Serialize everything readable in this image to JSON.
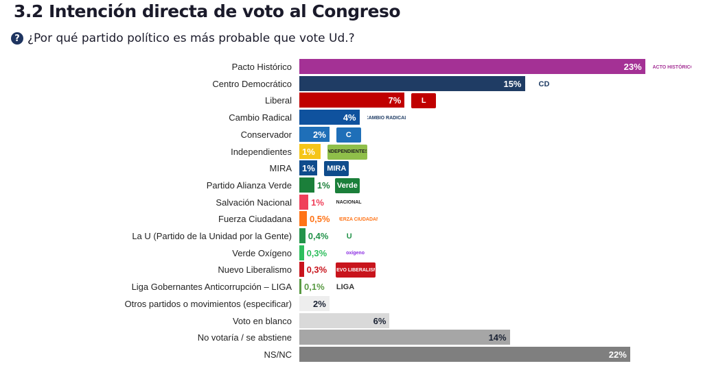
{
  "header": {
    "title": "3.2 Intención directa de voto al Congreso",
    "question": "¿Por qué partido político es más probable que vote Ud.?",
    "question_icon": "question-circle-icon"
  },
  "chart_data": {
    "type": "bar",
    "orientation": "horizontal",
    "title": "",
    "xlabel": "",
    "ylabel": "",
    "xlim": [
      0,
      23
    ],
    "grid": false,
    "legend": "none",
    "categories": [
      "Pacto Histórico",
      "Centro Democrático",
      "Liberal",
      "Cambio Radical",
      "Conservador",
      "Independientes",
      "MIRA",
      "Partido Alianza Verde",
      "Salvación Nacional",
      "Fuerza Ciudadana",
      "La U (Partido de la Unidad por la Gente)",
      "Verde Oxígeno",
      "Nuevo Liberalismo",
      "Liga Gobernantes Anticorrupción – LIGA",
      "Otros partidos o movimientos (especificar)",
      "Voto en blanco",
      "No votaría / se abstiene",
      "NS/NC"
    ],
    "values": [
      23,
      15,
      7,
      4,
      2,
      1.4,
      1.2,
      1,
      0.6,
      0.5,
      0.4,
      0.3,
      0.3,
      0.1,
      2,
      6,
      14,
      22
    ],
    "labels": [
      "23%",
      "15%",
      "7%",
      "4%",
      "2%",
      "1%",
      "1%",
      "1%",
      "1%",
      "0,5%",
      "0,4%",
      "0,3%",
      "0,3%",
      "0,1%",
      "2%",
      "6%",
      "14%",
      "22%"
    ],
    "colors": [
      "#a43195",
      "#1f3c64",
      "#c00000",
      "#0f529e",
      "#1f6fb8",
      "#f5c518",
      "#0f4c8c",
      "#1b7f3a",
      "#f0405a",
      "#ff7316",
      "#23934a",
      "#2dbe5c",
      "#c8141c",
      "#5a9a44",
      "#eeeeee",
      "#d9d9d9",
      "#a6a6a6",
      "#7f7f7f"
    ],
    "label_colors": [
      "#ffffff",
      "#ffffff",
      "#ffffff",
      "#ffffff",
      "#ffffff",
      "#ffffff",
      "#ffffff",
      "#1b7f3a",
      "#f0405a",
      "#ff7316",
      "#23934a",
      "#2dbe5c",
      "#c8141c",
      "#5a9a44",
      "#1a2233",
      "#1a2233",
      "#1a2233",
      "#ffffff"
    ],
    "label_inside": [
      true,
      true,
      true,
      true,
      true,
      true,
      true,
      false,
      false,
      false,
      false,
      false,
      false,
      false,
      true,
      true,
      true,
      true
    ],
    "logos": [
      {
        "text": "PACTO HISTÓRICO",
        "bg": "#ffffff",
        "fg": "#a43195"
      },
      {
        "text": "CD",
        "bg": "#ffffff",
        "fg": "#1f3c64"
      },
      {
        "text": "L",
        "bg": "#c00000",
        "fg": "#ffffff"
      },
      {
        "text": "CAMBIO RADICAL",
        "bg": "#ffffff",
        "fg": "#1f3c64"
      },
      {
        "text": "C",
        "bg": "#1f6fb8",
        "fg": "#ffffff"
      },
      {
        "text": "INDEPENDIENTES",
        "bg": "#8fbf4a",
        "fg": "#222222"
      },
      {
        "text": "MIRA",
        "bg": "#0f4c8c",
        "fg": "#ffffff"
      },
      {
        "text": "Verde",
        "bg": "#1b7f3a",
        "fg": "#ffffff"
      },
      {
        "text": "NACIONAL",
        "bg": "#ffffff",
        "fg": "#222222"
      },
      {
        "text": "FUERZA CIUDADANA",
        "bg": "#ffffff",
        "fg": "#ff7316"
      },
      {
        "text": "U",
        "bg": "#ffffff",
        "fg": "#23934a"
      },
      {
        "text": "oxígeno",
        "bg": "#ffffff",
        "fg": "#8a2be2"
      },
      {
        "text": "NUEVO LIBERALISMO",
        "bg": "#c8141c",
        "fg": "#ffffff"
      },
      {
        "text": "LIGA",
        "bg": "#ffffff",
        "fg": "#333333"
      },
      null,
      null,
      null,
      null
    ]
  }
}
